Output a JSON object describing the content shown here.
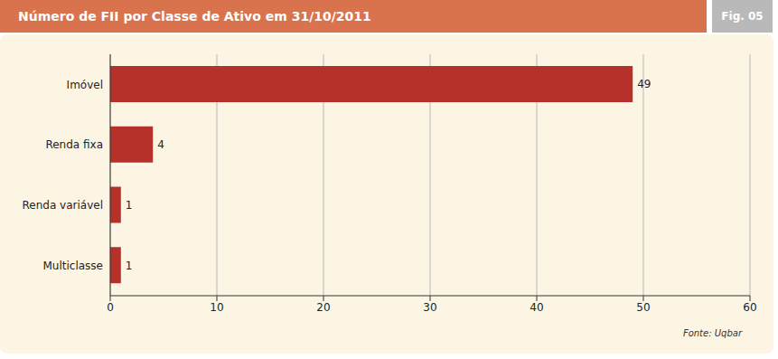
{
  "chart_data": {
    "type": "bar",
    "title": "Número de FII por Classe de Ativo em 31/10/2011",
    "annotations": [
      "Fig. 05",
      "Fonte: Uqbar"
    ],
    "categories": [
      "Imóvel",
      "Renda fixa",
      "Renda variável",
      "Multiclasse"
    ],
    "values": [
      49,
      4,
      1,
      1
    ],
    "color": "#b5312a",
    "orientation": "horizontal",
    "xlim": [
      0,
      60
    ],
    "xticks": [
      0,
      10,
      20,
      30,
      40,
      50,
      60
    ],
    "grid": true,
    "data_labels": true
  }
}
